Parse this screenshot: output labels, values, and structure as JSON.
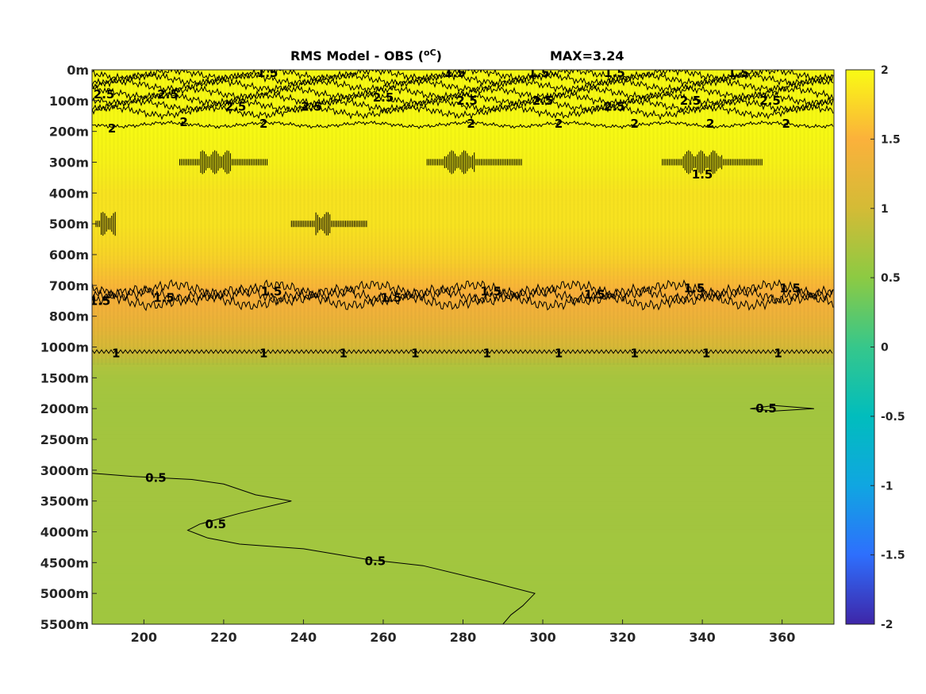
{
  "chart_data": {
    "type": "heatmap",
    "title": "RMS Model - OBS (",
    "title_unit": "oC",
    "title_unit_close": ")",
    "max_label": "MAX=3.24",
    "xlabel": "",
    "ylabel": "",
    "xlim": [
      187,
      373
    ],
    "x_ticks": [
      "200",
      "220",
      "240",
      "260",
      "280",
      "300",
      "320",
      "340",
      "360"
    ],
    "x_tick_values": [
      200,
      220,
      240,
      260,
      280,
      300,
      320,
      340,
      360
    ],
    "y_ticks": [
      "0m",
      "100m",
      "200m",
      "300m",
      "400m",
      "500m",
      "600m",
      "700m",
      "800m",
      "1000m",
      "1500m",
      "2000m",
      "2500m",
      "3000m",
      "3500m",
      "4000m",
      "4500m",
      "5000m",
      "5500m"
    ],
    "colorbar": {
      "clim": [
        -2,
        2
      ],
      "ticks": [
        "2",
        "1.5",
        "1",
        "0.5",
        "0",
        "-0.5",
        "-1",
        "-1.5",
        "-2"
      ],
      "tick_values": [
        2,
        1.5,
        1,
        0.5,
        0,
        -0.5,
        -1,
        -1.5,
        -2
      ],
      "colors": [
        "#3e26a8",
        "#2e6ffd",
        "#10a6e1",
        "#01bdbd",
        "#36c78b",
        "#8cca43",
        "#d4bb36",
        "#fbb13b",
        "#f9fb14"
      ]
    },
    "depth_profile": {
      "depth_index": [
        0,
        1,
        2,
        3,
        4,
        5,
        6,
        7,
        7.5,
        8,
        8.4,
        9,
        9.6,
        10,
        11,
        12,
        13,
        14,
        15,
        16,
        17,
        18
      ],
      "rms": [
        2.2,
        2.3,
        2.0,
        1.95,
        1.85,
        1.85,
        1.75,
        1.55,
        1.45,
        1.35,
        1.25,
        1.05,
        0.75,
        0.68,
        0.65,
        0.66,
        0.66,
        0.66,
        0.65,
        0.65,
        0.64,
        0.64
      ]
    },
    "contour_levels": [
      0.5,
      1,
      1.5,
      2,
      2.5
    ],
    "contour_labels": [
      {
        "text": "2.5",
        "x": 190,
        "y": 0.8
      },
      {
        "text": "2.5",
        "x": 206,
        "y": 0.8
      },
      {
        "text": "2.5",
        "x": 223,
        "y": 1.2
      },
      {
        "text": "2.5",
        "x": 242,
        "y": 1.2
      },
      {
        "text": "2.5",
        "x": 260,
        "y": 0.9
      },
      {
        "text": "2.5",
        "x": 281,
        "y": 1.0
      },
      {
        "text": "2.5",
        "x": 300,
        "y": 1.0
      },
      {
        "text": "2.5",
        "x": 318,
        "y": 1.2
      },
      {
        "text": "2.5",
        "x": 337,
        "y": 1.0
      },
      {
        "text": "2.5",
        "x": 357,
        "y": 1.0
      },
      {
        "text": "1.5",
        "x": 231,
        "y": 0.1
      },
      {
        "text": "1.5",
        "x": 278,
        "y": 0.1
      },
      {
        "text": "1.5",
        "x": 299,
        "y": 0.1
      },
      {
        "text": "1.5",
        "x": 318,
        "y": 0.1
      },
      {
        "text": "1.5",
        "x": 349,
        "y": 0.1
      },
      {
        "text": "2",
        "x": 192,
        "y": 1.9
      },
      {
        "text": "2",
        "x": 210,
        "y": 1.7
      },
      {
        "text": "2",
        "x": 230,
        "y": 1.75
      },
      {
        "text": "2",
        "x": 282,
        "y": 1.75
      },
      {
        "text": "2",
        "x": 304,
        "y": 1.75
      },
      {
        "text": "2",
        "x": 323,
        "y": 1.75
      },
      {
        "text": "2",
        "x": 342,
        "y": 1.75
      },
      {
        "text": "2",
        "x": 361,
        "y": 1.75
      },
      {
        "text": "1.5",
        "x": 340,
        "y": 3.4
      },
      {
        "text": "1.5",
        "x": 189,
        "y": 7.5
      },
      {
        "text": "1.5",
        "x": 205,
        "y": 7.4
      },
      {
        "text": "1.5",
        "x": 232,
        "y": 7.2
      },
      {
        "text": "1.5",
        "x": 262,
        "y": 7.4
      },
      {
        "text": "1.5",
        "x": 287,
        "y": 7.2
      },
      {
        "text": "1.5",
        "x": 313,
        "y": 7.3
      },
      {
        "text": "1.5",
        "x": 338,
        "y": 7.1
      },
      {
        "text": "1.5",
        "x": 362,
        "y": 7.1
      },
      {
        "text": "1",
        "x": 193,
        "y": 9.2
      },
      {
        "text": "1",
        "x": 230,
        "y": 9.2
      },
      {
        "text": "1",
        "x": 250,
        "y": 9.2
      },
      {
        "text": "1",
        "x": 268,
        "y": 9.2
      },
      {
        "text": "1",
        "x": 286,
        "y": 9.2
      },
      {
        "text": "1",
        "x": 304,
        "y": 9.2
      },
      {
        "text": "1",
        "x": 323,
        "y": 9.2
      },
      {
        "text": "1",
        "x": 341,
        "y": 9.2
      },
      {
        "text": "1",
        "x": 359,
        "y": 9.2
      },
      {
        "text": "0.5",
        "x": 356,
        "y": 11.0
      },
      {
        "text": "0.5",
        "x": 203,
        "y": 13.25
      },
      {
        "text": "0.5",
        "x": 218,
        "y": 14.75
      },
      {
        "text": "0.5",
        "x": 258,
        "y": 15.95
      }
    ],
    "contour_lines": [
      {
        "level": 1,
        "x": [
          187,
          373
        ],
        "y": [
          9.15,
          9.15
        ]
      },
      {
        "level": 0.5,
        "x": [
          187,
          197,
          212,
          220,
          228,
          237,
          224,
          214,
          211,
          216,
          224,
          240,
          256,
          270,
          286,
          298,
          295,
          292,
          290
        ],
        "y": [
          13.1,
          13.2,
          13.3,
          13.45,
          13.8,
          14.0,
          14.4,
          14.75,
          14.95,
          15.2,
          15.4,
          15.55,
          15.9,
          16.1,
          16.6,
          17.0,
          17.4,
          17.7,
          18.0
        ]
      },
      {
        "level": 0.5,
        "x": [
          352,
          358,
          368,
          358,
          352
        ],
        "y": [
          11.0,
          10.9,
          11.0,
          11.08,
          11.0
        ]
      }
    ],
    "blobs": [
      {
        "x": [
          209,
          231
        ],
        "y": 3.0,
        "core": [
          214,
          222
        ]
      },
      {
        "x": [
          271,
          295
        ],
        "y": 3.0,
        "core": [
          275,
          283
        ]
      },
      {
        "x": [
          330,
          355
        ],
        "y": 3.0,
        "core": [
          335,
          345
        ]
      },
      {
        "x": [
          188,
          193
        ],
        "y": 5.0,
        "core": [
          189,
          193
        ]
      },
      {
        "x": [
          237,
          256
        ],
        "y": 5.0,
        "core": [
          243,
          247
        ]
      }
    ]
  }
}
